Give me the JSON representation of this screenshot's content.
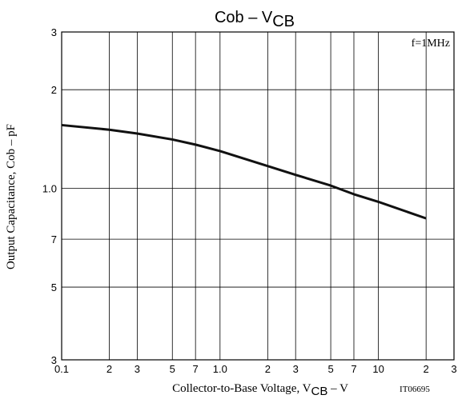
{
  "chart_data": {
    "type": "line",
    "title": "Cob  –  V",
    "title_subscript": "CB",
    "annotation": "f=1MHz",
    "x_label": "Collector-to-Base Voltage, V",
    "x_label_subscript": "CB",
    "x_label_unit": "  –  V",
    "y_label": "Output Capacitance, Cob  –  pF",
    "figure_code": "IT06695",
    "x": [
      0.1,
      0.2,
      0.3,
      0.5,
      0.7,
      1,
      2,
      3,
      5,
      7,
      10,
      20
    ],
    "series": [
      {
        "color": "#111111",
        "values": [
          1.56,
          1.51,
          1.47,
          1.41,
          1.36,
          1.3,
          1.17,
          1.1,
          1.02,
          0.96,
          0.91,
          0.81
        ]
      }
    ],
    "xlim": [
      0.1,
      30
    ],
    "ylim": [
      0.3,
      3
    ],
    "log_x": true,
    "log_y": true,
    "grid": true,
    "xticks": [
      0.1,
      {
        "value": 0.2,
        "label": "2"
      },
      {
        "value": 0.3,
        "label": "3"
      },
      {
        "value": 0.5,
        "label": "5"
      },
      {
        "value": 0.7,
        "label": "7"
      },
      {
        "value": 1,
        "label": "1.0"
      },
      {
        "value": 2,
        "label": "2"
      },
      {
        "value": 3,
        "label": "3"
      },
      {
        "value": 5,
        "label": "5"
      },
      {
        "value": 7,
        "label": "7"
      },
      10,
      {
        "value": 20,
        "label": "2"
      },
      {
        "value": 30,
        "label": "3"
      }
    ],
    "yticks": [
      {
        "value": 0.3,
        "label": "3"
      },
      {
        "value": 0.5,
        "label": "5"
      },
      {
        "value": 0.7,
        "label": "7"
      },
      {
        "value": 1,
        "label": "1.0"
      },
      2,
      3
    ]
  }
}
